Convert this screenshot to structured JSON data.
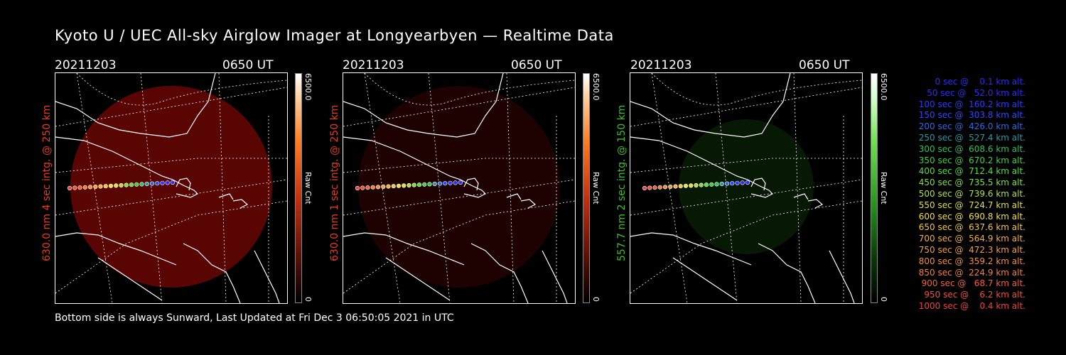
{
  "title": "Kyoto U / UEC All-sky Airglow Imager at Longyearbyen — Realtime Data",
  "footer": "Bottom side is always Sunward, Last Updated at Fri Dec  3 06:50:05 2021 in UTC",
  "colors": {
    "red": "#e83a1e",
    "green": "#3fbf2a",
    "background": "#000000"
  },
  "panels": [
    {
      "date": "20211203",
      "time": "0650 UT",
      "ylabel": "630.0 nm 4 sec intg. @ 250 km",
      "color": "#e83a1e",
      "cbar_max": "6500.0",
      "cbar_min": "0",
      "cbar_unit": "Raw Cnt",
      "brightness": 0.55,
      "tint": "red"
    },
    {
      "date": "20211203",
      "time": "0650 UT",
      "ylabel": "630.0 nm 1 sec intg. @ 250 km",
      "color": "#e83a1e",
      "cbar_max": "6500.0",
      "cbar_min": "0",
      "cbar_unit": "Raw Cnt",
      "brightness": 0.18,
      "tint": "red"
    },
    {
      "date": "20211203",
      "time": "0650 UT",
      "ylabel": "557.7 nm 2 sec intg. @ 150 km",
      "color": "#3fbf2a",
      "cbar_max": "6500.0",
      "cbar_min": "0",
      "cbar_unit": "Raw Cnt",
      "brightness": 0.22,
      "tint": "green"
    }
  ],
  "legend": [
    {
      "text": "   0 sec @    0.1 km alt.",
      "color": "#2a2aff"
    },
    {
      "text": "  50 sec @   52.0 km alt.",
      "color": "#2a2aff"
    },
    {
      "text": " 100 sec @  160.2 km alt.",
      "color": "#2a3aff"
    },
    {
      "text": " 150 sec @  303.8 km alt.",
      "color": "#2a4aff"
    },
    {
      "text": " 200 sec @  426.0 km alt.",
      "color": "#2a6ae0"
    },
    {
      "text": " 250 sec @  527.4 km alt.",
      "color": "#2a9aa0"
    },
    {
      "text": " 300 sec @  608.6 km alt.",
      "color": "#30c060"
    },
    {
      "text": " 350 sec @  670.2 km alt.",
      "color": "#40d040"
    },
    {
      "text": " 400 sec @  712.4 km alt.",
      "color": "#50e040"
    },
    {
      "text": " 450 sec @  735.5 km alt.",
      "color": "#80e040"
    },
    {
      "text": " 500 sec @  739.6 km alt.",
      "color": "#b0e040"
    },
    {
      "text": " 550 sec @  724.7 km alt.",
      "color": "#e0e040"
    },
    {
      "text": " 600 sec @  690.8 km alt.",
      "color": "#f0e040"
    },
    {
      "text": " 650 sec @  637.6 km alt.",
      "color": "#f0c840"
    },
    {
      "text": " 700 sec @  564.9 km alt.",
      "color": "#f0b040"
    },
    {
      "text": " 750 sec @  472.3 km alt.",
      "color": "#f0a040"
    },
    {
      "text": " 800 sec @  359.2 km alt.",
      "color": "#f09040"
    },
    {
      "text": " 850 sec @  224.9 km alt.",
      "color": "#f08040"
    },
    {
      "text": " 900 sec @   68.7 km alt.",
      "color": "#f06040"
    },
    {
      "text": " 950 sec @    6.2 km alt.",
      "color": "#f05040"
    },
    {
      "text": "1000 sec @    0.4 km alt.",
      "color": "#f04040"
    }
  ]
}
